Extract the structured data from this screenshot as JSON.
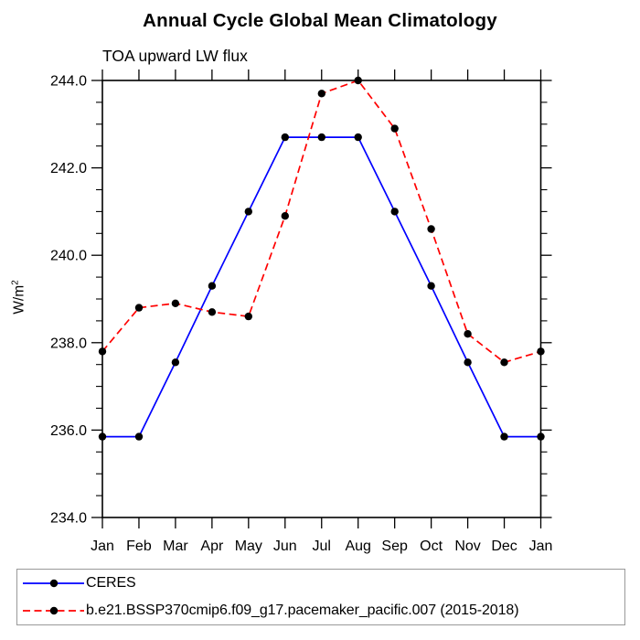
{
  "chart_data": {
    "type": "line",
    "title": "Annual Cycle Global Mean Climatology",
    "subtitle": "TOA upward LW flux",
    "xlabel": "",
    "ylabel": "W/m²",
    "ylabel_base": "W/m",
    "ylabel_exp": "2",
    "x_categories": [
      "Jan",
      "Feb",
      "Mar",
      "Apr",
      "May",
      "Jun",
      "Jul",
      "Aug",
      "Sep",
      "Oct",
      "Nov",
      "Dec",
      "Jan"
    ],
    "ylim": [
      234.0,
      244.0
    ],
    "y_major_ticks": [
      234.0,
      236.0,
      238.0,
      240.0,
      242.0,
      244.0
    ],
    "y_tick_labels": [
      "234.0",
      "236.0",
      "238.0",
      "240.0",
      "242.0",
      "244.0"
    ],
    "y_minor_step": 0.5,
    "grid": false,
    "legend_position": "bottom-left",
    "marker_color": "#000000",
    "axis_color": "#000000",
    "series": [
      {
        "name": "CERES",
        "color": "#0000ff",
        "line_style": "solid",
        "marker": "filled-circle",
        "values": [
          235.85,
          235.85,
          237.55,
          239.3,
          241.0,
          242.7,
          242.7,
          242.7,
          241.0,
          239.3,
          237.55,
          235.85,
          235.85
        ]
      },
      {
        "name": "b.e21.BSSP370cmip6.f09_g17.pacemaker_pacific.007 (2015-2018)",
        "color": "#ff0000",
        "line_style": "dashed",
        "marker": "filled-circle",
        "values": [
          237.8,
          238.8,
          238.9,
          238.7,
          238.6,
          240.9,
          243.7,
          244.0,
          242.9,
          240.6,
          238.2,
          237.55,
          237.8
        ]
      }
    ]
  }
}
